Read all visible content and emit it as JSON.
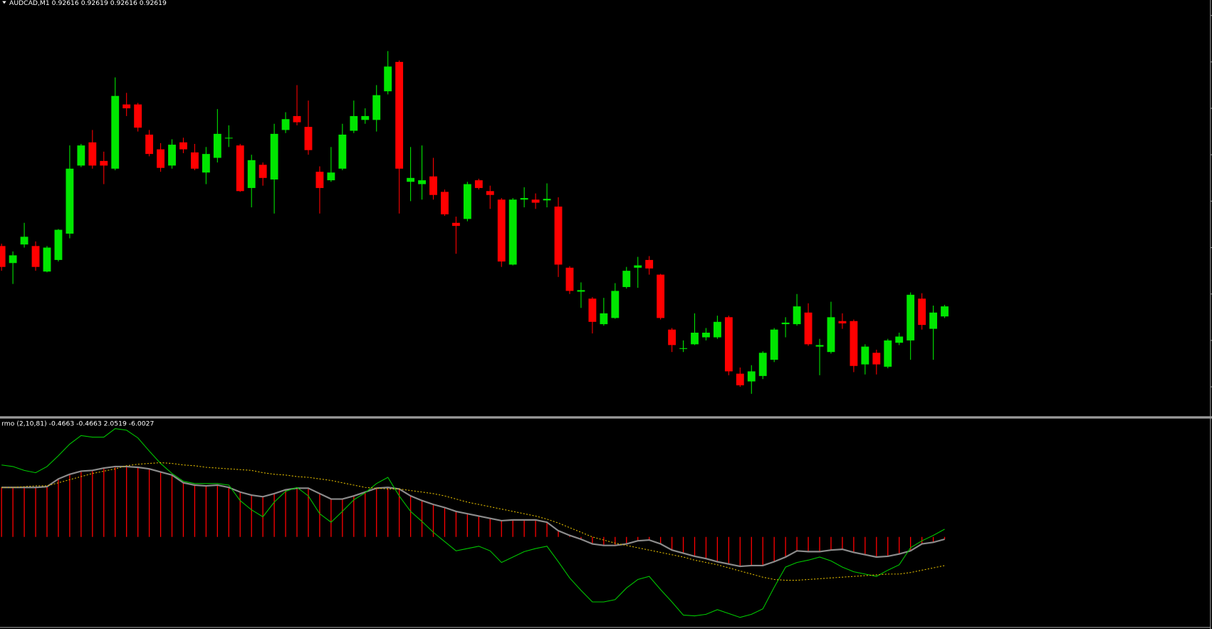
{
  "chart_data": [
    {
      "type": "candlestick",
      "title": "AUDCAD,M1  0.92616 0.92619 0.92616 0.92619",
      "up_color": "#00e600",
      "down_color": "#ff0000",
      "ylim": [
        0.92487,
        0.93022
      ],
      "open": [
        0.92704,
        0.92682,
        0.92706,
        0.92704,
        0.92671,
        0.92686,
        0.9272,
        0.92808,
        0.92838,
        0.92814,
        0.92804,
        0.92887,
        0.92887,
        0.92848,
        0.92829,
        0.92808,
        0.92838,
        0.92825,
        0.92799,
        0.92818,
        0.92843,
        0.92834,
        0.92779,
        0.92809,
        0.9279,
        0.92854,
        0.92872,
        0.92858,
        0.928,
        0.92789,
        0.92804,
        0.92853,
        0.92867,
        0.92867,
        0.92904,
        0.92942,
        0.92787,
        0.92784,
        0.92794,
        0.92774,
        0.92734,
        0.92739,
        0.92789,
        0.92775,
        0.92764,
        0.9268,
        0.92764,
        0.92764,
        0.92763,
        0.92755,
        0.92676,
        0.92645,
        0.92636,
        0.92603,
        0.92611,
        0.92651,
        0.92676,
        0.92686,
        0.92667,
        0.92596,
        0.92571,
        0.92577,
        0.92586,
        0.92586,
        0.92612,
        0.92539,
        0.92529,
        0.92536,
        0.92557,
        0.92603,
        0.92603,
        0.92618,
        0.92574,
        0.92567,
        0.92607,
        0.92607,
        0.92551,
        0.92566,
        0.92548,
        0.92579,
        0.92582,
        0.92636,
        0.92597,
        0.92613
      ],
      "high": [
        0.92707,
        0.92697,
        0.92734,
        0.9271,
        0.92704,
        0.92726,
        0.92834,
        0.92836,
        0.92854,
        0.92826,
        0.92922,
        0.92902,
        0.92889,
        0.92854,
        0.92837,
        0.92842,
        0.92844,
        0.92836,
        0.92832,
        0.92881,
        0.9286,
        0.92836,
        0.92822,
        0.92812,
        0.92862,
        0.92877,
        0.92912,
        0.92892,
        0.92807,
        0.92832,
        0.92862,
        0.92892,
        0.92882,
        0.92912,
        0.92956,
        0.92944,
        0.92832,
        0.92834,
        0.92818,
        0.92777,
        0.92742,
        0.92787,
        0.92791,
        0.92782,
        0.92766,
        0.92766,
        0.9278,
        0.92772,
        0.92785,
        0.92767,
        0.92678,
        0.92657,
        0.92638,
        0.92637,
        0.92656,
        0.92677,
        0.9269,
        0.92691,
        0.92668,
        0.92598,
        0.92582,
        0.92617,
        0.92598,
        0.92614,
        0.92614,
        0.92547,
        0.9255,
        0.92568,
        0.92598,
        0.92612,
        0.92642,
        0.9263,
        0.92584,
        0.92632,
        0.92617,
        0.92609,
        0.92577,
        0.9257,
        0.92584,
        0.92592,
        0.92644,
        0.92643,
        0.92627,
        0.92628
      ],
      "low": [
        0.92672,
        0.92655,
        0.92702,
        0.92672,
        0.9267,
        0.92684,
        0.92714,
        0.92806,
        0.92804,
        0.92784,
        0.92802,
        0.92872,
        0.92852,
        0.9282,
        0.928,
        0.92804,
        0.92824,
        0.92802,
        0.92784,
        0.92812,
        0.92832,
        0.92774,
        0.92754,
        0.92782,
        0.92746,
        0.9285,
        0.9286,
        0.92822,
        0.92746,
        0.92787,
        0.92802,
        0.9285,
        0.92862,
        0.92852,
        0.929,
        0.92746,
        0.92762,
        0.92764,
        0.92764,
        0.92743,
        0.92694,
        0.92736,
        0.92777,
        0.92752,
        0.92677,
        0.92679,
        0.92754,
        0.92752,
        0.92754,
        0.92664,
        0.92642,
        0.92624,
        0.92591,
        0.92601,
        0.9261,
        0.92649,
        0.9265,
        0.92667,
        0.92609,
        0.92567,
        0.92567,
        0.92576,
        0.92582,
        0.92584,
        0.92537,
        0.92522,
        0.92513,
        0.92532,
        0.92554,
        0.92586,
        0.92601,
        0.92575,
        0.92537,
        0.92565,
        0.92597,
        0.92541,
        0.92538,
        0.92538,
        0.92546,
        0.92576,
        0.92557,
        0.92596,
        0.92557,
        0.92611
      ],
      "close": [
        0.92677,
        0.92692,
        0.92716,
        0.92677,
        0.92702,
        0.92725,
        0.92804,
        0.92834,
        0.92808,
        0.92808,
        0.92898,
        0.92882,
        0.92857,
        0.92823,
        0.92805,
        0.92835,
        0.92829,
        0.92804,
        0.92823,
        0.92849,
        0.92844,
        0.92775,
        0.92815,
        0.92792,
        0.92849,
        0.92868,
        0.92864,
        0.92828,
        0.92779,
        0.92799,
        0.92848,
        0.92872,
        0.92872,
        0.92899,
        0.92936,
        0.92804,
        0.92792,
        0.92789,
        0.9277,
        0.92745,
        0.9273,
        0.92784,
        0.92779,
        0.9277,
        0.92684,
        0.92764,
        0.92766,
        0.9276,
        0.92765,
        0.9268,
        0.92646,
        0.92647,
        0.92606,
        0.92617,
        0.92646,
        0.92672,
        0.92679,
        0.92675,
        0.92611,
        0.92576,
        0.92572,
        0.92592,
        0.92592,
        0.92606,
        0.92542,
        0.92524,
        0.92542,
        0.92566,
        0.92596,
        0.92605,
        0.92626,
        0.92577,
        0.92576,
        0.92612,
        0.92604,
        0.92549,
        0.92574,
        0.92551,
        0.92582,
        0.92587,
        0.92641,
        0.92602,
        0.92618,
        0.92626
      ]
    },
    {
      "type": "indicator",
      "title": "rmo (2,10,81) -0.4663 -0.4663 2.0519 -6.0027",
      "ylim": [
        -11.9,
        14.6
      ],
      "series": [
        {
          "type": "histogram",
          "color": "#ff0000",
          "line_color": "#8c8c8c",
          "values": [
            6.4,
            6.4,
            6.4,
            6.4,
            6.5,
            7.5,
            8.1,
            8.5,
            8.6,
            8.9,
            9.1,
            9.1,
            9.0,
            8.8,
            8.4,
            8.0,
            7.0,
            6.7,
            6.6,
            6.7,
            6.4,
            5.8,
            5.4,
            5.2,
            5.6,
            6.1,
            6.3,
            6.3,
            5.6,
            4.9,
            4.9,
            5.3,
            5.8,
            6.3,
            6.4,
            6.2,
            5.3,
            4.7,
            4.2,
            3.8,
            3.3,
            3.0,
            2.7,
            2.4,
            2.1,
            2.2,
            2.2,
            2.2,
            1.9,
            0.8,
            0.2,
            -0.3,
            -0.9,
            -1.1,
            -1.1,
            -0.9,
            -0.5,
            -0.4,
            -0.9,
            -1.7,
            -2.1,
            -2.5,
            -2.8,
            -3.2,
            -3.5,
            -3.8,
            -3.7,
            -3.7,
            -3.2,
            -2.6,
            -1.8,
            -1.9,
            -1.9,
            -1.7,
            -1.6,
            -2.0,
            -2.3,
            -2.6,
            -2.5,
            -2.2,
            -1.8,
            -0.9,
            -0.7,
            -0.3
          ]
        },
        {
          "type": "line",
          "color": "#00c800",
          "values": [
            9.3,
            9.1,
            8.6,
            8.3,
            9.1,
            10.5,
            12.0,
            13.1,
            12.9,
            12.9,
            14.0,
            13.8,
            12.8,
            11.1,
            9.5,
            8.2,
            7.2,
            6.9,
            6.9,
            6.9,
            6.7,
            4.7,
            3.5,
            2.6,
            4.5,
            5.9,
            6.4,
            5.3,
            3.0,
            1.9,
            3.3,
            4.8,
            5.7,
            6.9,
            7.7,
            5.3,
            3.3,
            2.0,
            0.6,
            -0.6,
            -1.8,
            -1.5,
            -1.2,
            -1.8,
            -3.3,
            -2.6,
            -1.9,
            -1.5,
            -1.2,
            -3.2,
            -5.3,
            -6.9,
            -8.4,
            -8.4,
            -8.1,
            -6.6,
            -5.5,
            -5.1,
            -6.8,
            -8.4,
            -10.1,
            -10.2,
            -10.0,
            -9.4,
            -9.9,
            -10.4,
            -10.0,
            -9.3,
            -6.5,
            -3.9,
            -3.3,
            -3.0,
            -2.6,
            -3.1,
            -3.9,
            -4.5,
            -4.8,
            -5.1,
            -4.3,
            -3.6,
            -1.4,
            -0.5,
            0.2,
            1.0
          ]
        },
        {
          "type": "line",
          "color": "#d8b400",
          "dashed": true,
          "values": [
            6.4,
            6.4,
            6.5,
            6.6,
            6.6,
            7.0,
            7.4,
            7.8,
            8.2,
            8.5,
            8.8,
            9.2,
            9.4,
            9.5,
            9.6,
            9.5,
            9.3,
            9.2,
            9.0,
            8.9,
            8.8,
            8.7,
            8.6,
            8.3,
            8.1,
            8.0,
            7.8,
            7.7,
            7.5,
            7.3,
            7.0,
            6.7,
            6.4,
            6.3,
            6.2,
            6.2,
            6.0,
            5.8,
            5.6,
            5.3,
            4.9,
            4.5,
            4.2,
            3.9,
            3.6,
            3.3,
            3.0,
            2.7,
            2.3,
            1.8,
            1.2,
            0.6,
            0.0,
            -0.4,
            -0.8,
            -1.1,
            -1.4,
            -1.7,
            -2.0,
            -2.3,
            -2.6,
            -3.0,
            -3.3,
            -3.6,
            -4.0,
            -4.4,
            -4.8,
            -5.2,
            -5.5,
            -5.6,
            -5.6,
            -5.5,
            -5.4,
            -5.3,
            -5.2,
            -5.1,
            -5.0,
            -4.9,
            -4.8,
            -4.8,
            -4.6,
            -4.3,
            -4.0,
            -3.7
          ]
        }
      ]
    }
  ]
}
